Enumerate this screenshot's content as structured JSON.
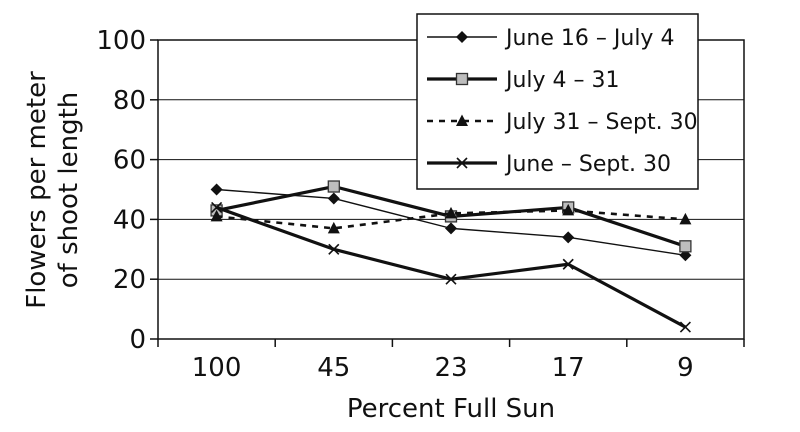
{
  "chart_data": {
    "type": "line",
    "title": "",
    "xlabel": "Percent Full Sun",
    "ylabel_lines": [
      "Flowers per meter",
      "of shoot length"
    ],
    "categories": [
      "100",
      "45",
      "23",
      "17",
      "9"
    ],
    "ylim": [
      0,
      100
    ],
    "yticks": [
      0,
      20,
      40,
      60,
      80,
      100
    ],
    "grid": "horizontal",
    "legend_position": "top-right",
    "series": [
      {
        "name": "June 16 – July 4",
        "values": [
          50,
          47,
          37,
          34,
          28
        ],
        "marker": "diamond",
        "line": "thin",
        "color": "#111111"
      },
      {
        "name": "July 4 – 31",
        "values": [
          43,
          51,
          41,
          44,
          31
        ],
        "marker": "square",
        "line": "thick",
        "color": "#111111"
      },
      {
        "name": "July 31 – Sept. 30",
        "values": [
          41,
          37,
          42,
          43,
          40
        ],
        "marker": "triangle",
        "line": "dashed",
        "color": "#111111"
      },
      {
        "name": "June – Sept. 30",
        "values": [
          44,
          30,
          20,
          25,
          4
        ],
        "marker": "x",
        "line": "thick",
        "color": "#111111"
      }
    ]
  }
}
